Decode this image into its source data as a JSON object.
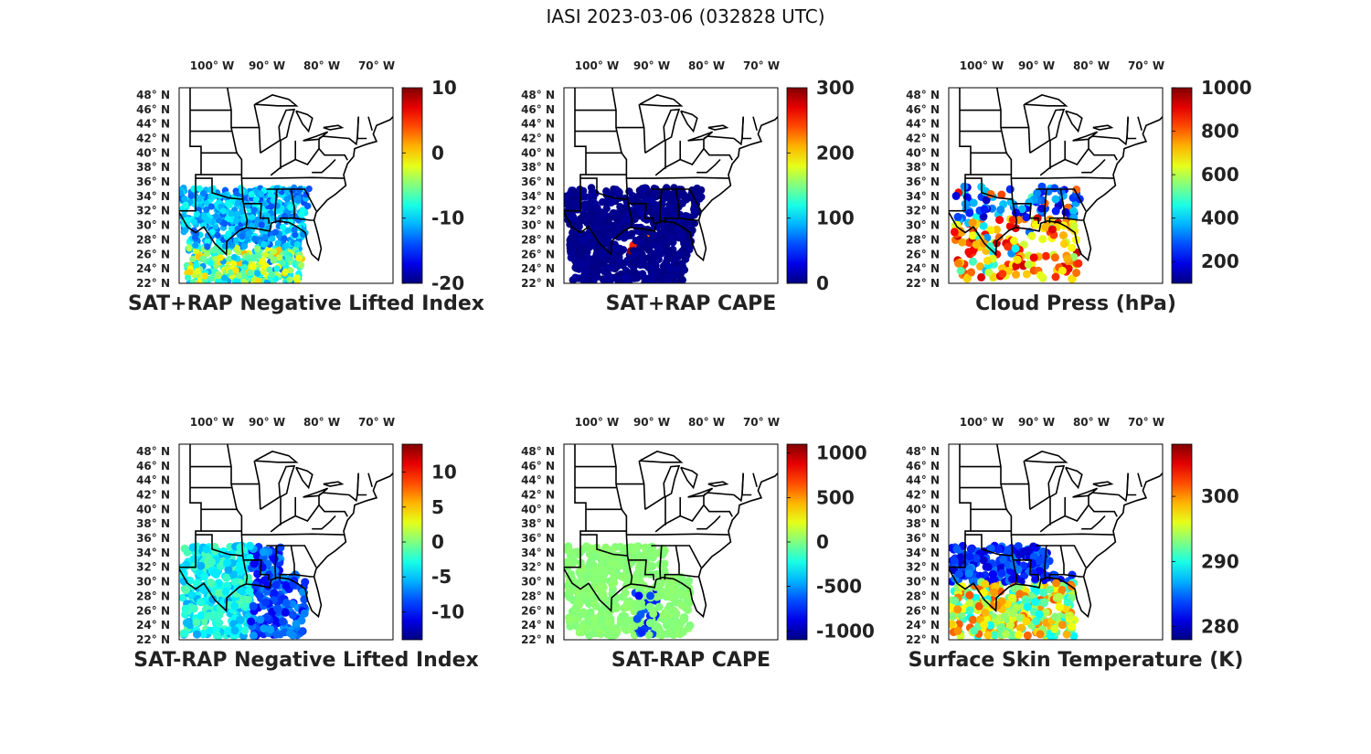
{
  "figure": {
    "title": "IASI 2023-03-06 (032828 UTC)"
  },
  "map_axes": {
    "lon_labels": [
      "100° W",
      "90° W",
      "80° W",
      "70° W"
    ],
    "lat_labels": [
      "48° N",
      "46° N",
      "44° N",
      "42° N",
      "40° N",
      "38° N",
      "36° N",
      "34° N",
      "32° N",
      "30° N",
      "28° N",
      "26° N",
      "24° N",
      "22° N"
    ]
  },
  "colormap": "jet",
  "panels": [
    {
      "title": "SAT+RAP Negative Lifted Index",
      "colorbar_ticks": [
        "10",
        "0",
        "-10",
        "-20"
      ],
      "colorbar_range": [
        -20,
        10
      ],
      "data_pattern": "li"
    },
    {
      "title": "SAT+RAP CAPE",
      "colorbar_ticks": [
        "300",
        "200",
        "100",
        "0"
      ],
      "colorbar_range": [
        0,
        300
      ],
      "data_pattern": "cape"
    },
    {
      "title": "Cloud Press (hPa)",
      "colorbar_ticks": [
        "1000",
        "800",
        "600",
        "400",
        "200"
      ],
      "colorbar_range": [
        100,
        1000
      ],
      "data_pattern": "cloud"
    },
    {
      "title": "SAT-RAP Negative Lifted Index",
      "colorbar_ticks": [
        "10",
        "5",
        "0",
        "-5",
        "-10"
      ],
      "colorbar_range": [
        -14,
        14
      ],
      "data_pattern": "dli"
    },
    {
      "title": "SAT-RAP CAPE",
      "colorbar_ticks": [
        "1000",
        "500",
        "0",
        "-500",
        "-1000"
      ],
      "colorbar_range": [
        -1100,
        1100
      ],
      "data_pattern": "dcape"
    },
    {
      "title": "Surface Skin Temperature (K)",
      "colorbar_ticks": [
        "300",
        "290",
        "280"
      ],
      "colorbar_range": [
        278,
        308
      ],
      "data_pattern": "skin"
    }
  ]
}
